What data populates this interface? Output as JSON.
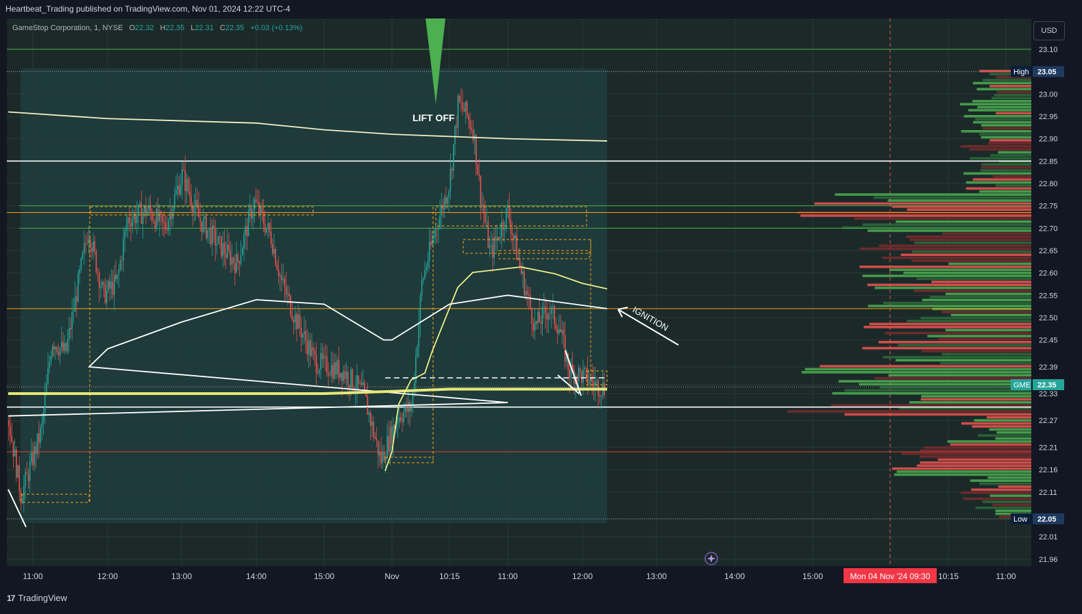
{
  "header": {
    "publish_text": "Heartbeat_Trading published on TradingView.com, Nov 01, 2024 12:22 UTC-4"
  },
  "legend": {
    "symbol": "GameStop Corporation, 1, NYSE",
    "o_label": "O",
    "o_value": "22.32",
    "h_label": "H",
    "h_value": "22.35",
    "l_label": "L",
    "l_value": "22.31",
    "c_label": "C",
    "c_value": "22.35",
    "change": "+0.03 (+0.13%)"
  },
  "currency": "USD",
  "footer": {
    "brand": "TradingView",
    "logo": "17"
  },
  "colors": {
    "background": "#131722",
    "chart_bg": "#1b2a29",
    "session_bg": "#1e3a3a",
    "up": "#26a69a",
    "down": "#ef5350",
    "vwap_white": "#ffffff",
    "vwap_yellow": "#f0f08a",
    "orange": "#f7a21b",
    "green_line": "#4caf50",
    "red_line": "#e53935",
    "price_badge": "#26a69a"
  },
  "chart_data": {
    "type": "line",
    "title": "GameStop Corporation, 1, NYSE",
    "y_ticks": [
      "23.10",
      "23.05",
      "23.00",
      "22.95",
      "22.90",
      "22.85",
      "22.80",
      "22.75",
      "22.70",
      "22.65",
      "22.60",
      "22.55",
      "22.50",
      "22.45",
      "22.39",
      "22.35",
      "22.33",
      "22.27",
      "22.21",
      "22.16",
      "22.11",
      "22.05",
      "22.01",
      "21.96"
    ],
    "x_ticks": [
      "11:00",
      "12:00",
      "13:00",
      "14:00",
      "15:00",
      "Nov",
      "10:15",
      "11:00",
      "12:00",
      "13:00",
      "14:00",
      "15:00",
      "10:15",
      "11:00"
    ],
    "x_highlight": "Mon 04 Nov '24   09:30",
    "price_labels": [
      {
        "name": "High",
        "value": "23.05"
      },
      {
        "name": "GME",
        "value": "22.35"
      },
      {
        "name": "Low",
        "value": "22.05"
      }
    ],
    "annotations": [
      "LIFT OFF",
      "IGNITION"
    ],
    "horizontal_levels": [
      {
        "value": 23.1,
        "color": "green"
      },
      {
        "value": 22.85,
        "color": "white"
      },
      {
        "value": 22.75,
        "color": "green"
      },
      {
        "value": 22.735,
        "color": "orange"
      },
      {
        "value": 22.7,
        "color": "green"
      },
      {
        "value": 22.52,
        "color": "orange"
      },
      {
        "value": 22.3,
        "color": "white"
      },
      {
        "value": 22.2,
        "color": "red"
      }
    ],
    "vwap_upper": [
      {
        "x": "10:45",
        "y": 22.96
      },
      {
        "x": "12:00",
        "y": 22.945
      },
      {
        "x": "14:00",
        "y": 22.935
      },
      {
        "x": "15:00",
        "y": 22.92
      },
      {
        "x": "Nov",
        "y": 22.91
      },
      {
        "x": "10:15",
        "y": 22.905
      },
      {
        "x": "11:00",
        "y": 22.9
      },
      {
        "x": "12:20",
        "y": 22.895
      }
    ],
    "vwap_white": [
      {
        "x": "10:45",
        "y": 22.28
      },
      {
        "x": "11:00",
        "y": 22.31
      },
      {
        "x": "11:45",
        "y": 22.39
      },
      {
        "x": "12:00",
        "y": 22.43
      },
      {
        "x": "13:00",
        "y": 22.49
      },
      {
        "x": "14:00",
        "y": 22.54
      },
      {
        "x": "15:00",
        "y": 22.53
      },
      {
        "x": "15:45",
        "y": 22.45
      },
      {
        "x": "Nov",
        "y": 22.45
      },
      {
        "x": "10:15",
        "y": 22.53
      },
      {
        "x": "11:00",
        "y": 22.55
      },
      {
        "x": "12:20",
        "y": 22.52
      }
    ],
    "vwap_yellow": [
      {
        "x": "10:45",
        "y": 22.33
      },
      {
        "x": "15:00",
        "y": 22.33
      },
      {
        "x": "Nov",
        "y": 22.335
      },
      {
        "x": "10:15",
        "y": 22.34
      },
      {
        "x": "12:20",
        "y": 22.34
      }
    ],
    "ohlc_range": {
      "high": 23.05,
      "low": 22.05,
      "last": 22.35
    }
  }
}
